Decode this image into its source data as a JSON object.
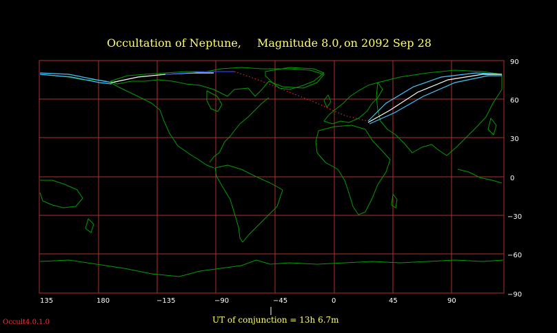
{
  "title": {
    "part1": "Occultation  of  Neptune,",
    "part2": "Magnitude 8.0,",
    "part3": "on  2092 Sep 28"
  },
  "footer": {
    "conjunction": "UT of conjunction = 13h  6.7m",
    "version": "Occult4.0.1.0"
  },
  "colors": {
    "background": "#000000",
    "grid": "#b03030",
    "coastline": "#00a000",
    "title": "#ffff66",
    "path_center": "#ffffff",
    "path_limit": "#40c8ff",
    "path_dark": "#2040ff",
    "dotted_path": "#ff3030"
  },
  "map": {
    "projection": "equirectangular",
    "longitude_range": [
      135,
      495
    ],
    "latitude_range": [
      -90,
      90
    ],
    "x_tick_labels": [
      "135",
      "180",
      "−135",
      "−90",
      "−45",
      "0",
      "45",
      "90"
    ],
    "y_tick_labels": [
      "90",
      "60",
      "30",
      "0",
      "−30",
      "−60",
      "−90"
    ]
  }
}
